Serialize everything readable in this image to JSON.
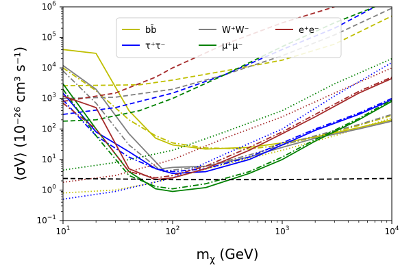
{
  "chart_data": {
    "type": "line",
    "xscale": "log",
    "yscale": "log",
    "xlim": [
      10,
      10000
    ],
    "ylim": [
      0.1,
      1000000
    ],
    "xlabel_base": "m",
    "xlabel_sub": "χ",
    "xlabel_unit": " (GeV)",
    "ylabel": "⟨σV⟩ (10⁻²⁶ cm³ s⁻¹)",
    "x_ticks": [
      {
        "value": 10,
        "base": "10",
        "exp": "1"
      },
      {
        "value": 100,
        "base": "10",
        "exp": "2"
      },
      {
        "value": 1000,
        "base": "10",
        "exp": "3"
      },
      {
        "value": 10000,
        "base": "10",
        "exp": "4"
      }
    ],
    "y_ticks": [
      {
        "value": 0.1,
        "base": "10",
        "exp": "−1"
      },
      {
        "value": 1,
        "base": "10",
        "exp": "0"
      },
      {
        "value": 10,
        "base": "10",
        "exp": "1"
      },
      {
        "value": 100,
        "base": "10",
        "exp": "2"
      },
      {
        "value": 1000,
        "base": "10",
        "exp": "3"
      },
      {
        "value": 10000,
        "base": "10",
        "exp": "4"
      },
      {
        "value": 100000,
        "base": "10",
        "exp": "5"
      },
      {
        "value": 1000000,
        "base": "10",
        "exp": "6"
      }
    ],
    "legend": [
      {
        "label": "bb̄",
        "color": "#bfbf00"
      },
      {
        "label": "W⁺W⁻",
        "color": "#808080"
      },
      {
        "label": "e⁺e⁻",
        "color": "#a52a2a"
      },
      {
        "label": "τ⁺τ⁻",
        "color": "#0000ff"
      },
      {
        "label": "μ⁺μ⁻",
        "color": "#008000"
      }
    ],
    "series": [
      {
        "name": "bb-solid",
        "channel": "bb̄",
        "color": "#bfbf00",
        "style": "solid",
        "x": [
          10,
          20,
          40,
          70,
          100,
          200,
          500,
          1000,
          2000,
          5000,
          10000
        ],
        "y": [
          40000,
          30000,
          400,
          50,
          30,
          22,
          25,
          35,
          55,
          110,
          200
        ]
      },
      {
        "name": "bb-dashdot",
        "channel": "bb̄",
        "color": "#bfbf00",
        "style": "dashdot",
        "x": [
          10,
          20,
          40,
          70,
          100,
          200,
          500,
          1000,
          2000,
          5000,
          10000
        ],
        "y": [
          10000,
          1800,
          200,
          60,
          35,
          24,
          22,
          30,
          55,
          130,
          280
        ]
      },
      {
        "name": "bb-dashed",
        "channel": "bb̄",
        "color": "#bfbf00",
        "style": "dashed",
        "x": [
          10,
          50,
          100,
          300,
          1000,
          3000,
          10000
        ],
        "y": [
          2600,
          2800,
          4000,
          8000,
          18000,
          60000,
          500000
        ]
      },
      {
        "name": "bb-dotted",
        "channel": "bb̄",
        "color": "#bfbf00",
        "style": "dotted",
        "x": [
          10,
          30,
          60,
          100,
          300,
          1000,
          3000,
          10000
        ],
        "y": [
          0.8,
          1.0,
          1.6,
          2.5,
          7,
          20,
          60,
          230
        ]
      },
      {
        "name": "ww-solid",
        "channel": "W⁺W⁻",
        "color": "#808080",
        "style": "solid",
        "x": [
          10,
          20,
          40,
          80,
          100,
          200,
          500,
          1000,
          2000,
          5000,
          10000
        ],
        "y": [
          12000,
          2000,
          70,
          5,
          5.5,
          6,
          12,
          25,
          50,
          100,
          180
        ]
      },
      {
        "name": "ww-dashdot",
        "channel": "W⁺W⁻",
        "color": "#808080",
        "style": "dashdot",
        "x": [
          10,
          20,
          40,
          80,
          100,
          200,
          500,
          1000,
          2000,
          5000,
          10000
        ],
        "y": [
          8000,
          700,
          30,
          4,
          4.5,
          6,
          14,
          30,
          60,
          140,
          300
        ]
      },
      {
        "name": "ww-dashed",
        "channel": "W⁺W⁻",
        "color": "#808080",
        "style": "dashed",
        "x": [
          10,
          30,
          100,
          300,
          1000,
          3000,
          10000
        ],
        "y": [
          1000,
          1100,
          2000,
          6000,
          25000,
          120000,
          900000
        ]
      },
      {
        "name": "tau-solid",
        "channel": "τ⁺τ⁻",
        "color": "#0000ff",
        "style": "solid",
        "x": [
          10,
          20,
          40,
          70,
          100,
          200,
          500,
          1000,
          2000,
          5000,
          10000
        ],
        "y": [
          1500,
          80,
          18,
          5,
          3.5,
          4,
          10,
          30,
          90,
          300,
          900
        ]
      },
      {
        "name": "tau-dashdot",
        "channel": "τ⁺τ⁻",
        "color": "#0000ff",
        "style": "dashdot",
        "x": [
          10,
          20,
          40,
          70,
          100,
          200,
          500,
          1000,
          2000,
          5000,
          10000
        ],
        "y": [
          900,
          60,
          12,
          5,
          4,
          5,
          12,
          35,
          100,
          330,
          1000
        ]
      },
      {
        "name": "tau-dashed",
        "channel": "τ⁺τ⁻",
        "color": "#0000ff",
        "style": "dashed",
        "x": [
          10,
          30,
          100,
          300,
          1000,
          3000,
          7000
        ],
        "y": [
          300,
          500,
          1500,
          6000,
          40000,
          200000,
          1000000
        ]
      },
      {
        "name": "tau-dotted",
        "channel": "τ⁺τ⁻",
        "color": "#0000ff",
        "style": "dotted",
        "x": [
          10,
          30,
          100,
          300,
          1000,
          3000,
          10000
        ],
        "y": [
          0.5,
          0.9,
          2.5,
          15,
          100,
          1200,
          15000
        ]
      },
      {
        "name": "mu-solid",
        "channel": "μ⁺μ⁻",
        "color": "#008000",
        "style": "solid",
        "x": [
          10,
          20,
          40,
          70,
          100,
          200,
          500,
          1000,
          2000,
          5000,
          10000
        ],
        "y": [
          3000,
          100,
          4,
          1.1,
          0.9,
          1.2,
          3.5,
          10,
          40,
          200,
          800
        ]
      },
      {
        "name": "mu-dashdot",
        "channel": "μ⁺μ⁻",
        "color": "#008000",
        "style": "dashdot",
        "x": [
          10,
          20,
          40,
          70,
          100,
          200,
          500,
          1000,
          2000,
          5000,
          10000
        ],
        "y": [
          2000,
          60,
          3,
          1.3,
          1.1,
          1.6,
          4,
          12,
          45,
          220,
          900
        ]
      },
      {
        "name": "mu-dashed",
        "channel": "μ⁺μ⁻",
        "color": "#008000",
        "style": "dashed",
        "x": [
          10,
          20,
          50,
          100,
          300,
          1000,
          3000,
          7000
        ],
        "y": [
          180,
          200,
          400,
          1000,
          6000,
          50000,
          300000,
          1000000
        ]
      },
      {
        "name": "mu-dotted",
        "channel": "μ⁺μ⁻",
        "color": "#008000",
        "style": "dotted",
        "x": [
          10,
          30,
          100,
          300,
          1000,
          3000,
          10000
        ],
        "y": [
          4.5,
          8,
          20,
          80,
          400,
          3000,
          20000
        ]
      },
      {
        "name": "ee-solid",
        "channel": "e⁺e⁻",
        "color": "#a52a2a",
        "style": "solid",
        "x": [
          10,
          20,
          40,
          70,
          100,
          200,
          500,
          1000,
          2000,
          5000,
          10000
        ],
        "y": [
          1200,
          500,
          5,
          2.2,
          2.5,
          5,
          20,
          70,
          250,
          1500,
          4500
        ]
      },
      {
        "name": "ee-dashdot",
        "channel": "e⁺e⁻",
        "color": "#a52a2a",
        "style": "dashdot",
        "x": [
          10,
          20,
          40,
          70,
          100,
          200,
          500,
          1000,
          2000,
          5000,
          10000
        ],
        "y": [
          700,
          100,
          4,
          2.5,
          3,
          6,
          25,
          80,
          300,
          1700,
          5000
        ]
      },
      {
        "name": "ee-dashed",
        "channel": "e⁺e⁻",
        "color": "#a52a2a",
        "style": "dashed",
        "x": [
          10,
          30,
          70,
          100,
          300,
          1000,
          3000
        ],
        "y": [
          800,
          1500,
          5000,
          10000,
          60000,
          300000,
          1000000
        ]
      },
      {
        "name": "ee-dotted",
        "channel": "e⁺e⁻",
        "color": "#a52a2a",
        "style": "dotted",
        "x": [
          10,
          30,
          100,
          300,
          1000,
          3000,
          10000
        ],
        "y": [
          1.8,
          3,
          10,
          50,
          250,
          1500,
          10000
        ]
      },
      {
        "name": "thermal-relic",
        "channel": "",
        "color": "#000000",
        "style": "dashed",
        "x": [
          10,
          100,
          1000,
          10000
        ],
        "y": [
          2.4,
          2.2,
          2.2,
          2.4
        ]
      }
    ]
  }
}
